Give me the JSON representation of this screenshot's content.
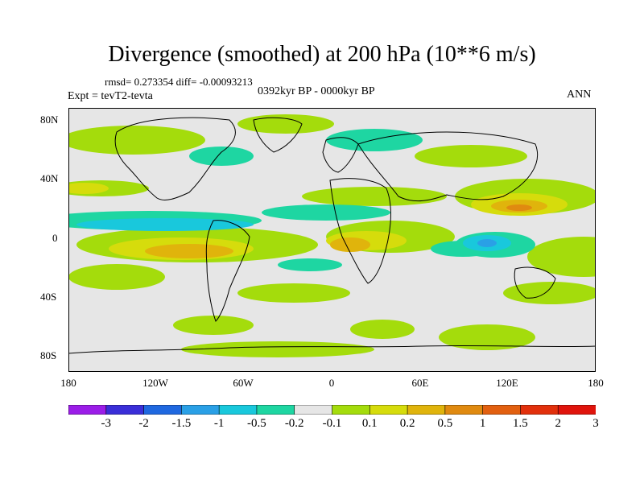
{
  "figure": {
    "title": "Divergence (smoothed) at 200 hPa (10**6 m/s)",
    "stats": "rmsd= 0.273354 diff= -0.00093213",
    "expt": "Expt = tevT2-tevta",
    "period": "0392kyr BP - 0000kyr BP",
    "season": "ANN"
  },
  "axes": {
    "lat_ticks": [
      "80N",
      "40N",
      "0",
      "40S",
      "80S"
    ],
    "lon_ticks": [
      "180",
      "120W",
      "60W",
      "0",
      "60E",
      "120E",
      "180"
    ]
  },
  "colorbar": {
    "labels": [
      "-3",
      "-2",
      "-1.5",
      "-1",
      "-0.5",
      "-0.2",
      "-0.1",
      "0.1",
      "0.2",
      "0.5",
      "1",
      "1.5",
      "2",
      "3"
    ],
    "colors": [
      "#9b1de8",
      "#3a2ed8",
      "#1f68e0",
      "#2aa0e6",
      "#19c8dc",
      "#1ed6a2",
      "#e6e6e6",
      "#a4dc0c",
      "#d6dc0c",
      "#e0b40c",
      "#e08a10",
      "#e26010",
      "#e2300c",
      "#e0140c"
    ]
  },
  "map_colors": {
    "background": "#e6e6e6",
    "pos1": "#a4dc0c",
    "pos2": "#d6dc0c",
    "pos3": "#e0b40c",
    "pos4": "#e08a10",
    "neg1": "#1ed6a2",
    "neg2": "#19c8dc",
    "neg3": "#2aa0e6",
    "coast": "#000000"
  }
}
